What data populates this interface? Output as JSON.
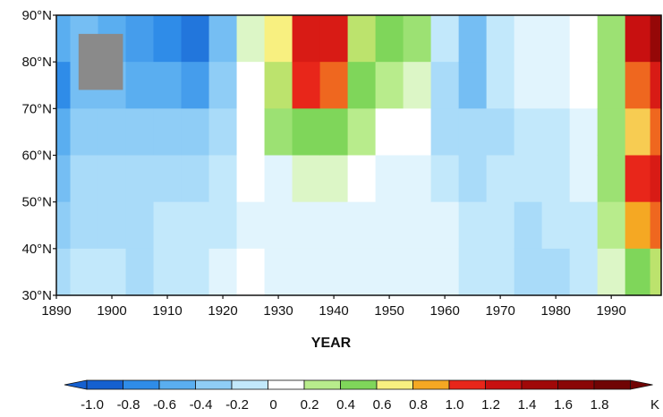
{
  "chart_data": {
    "type": "heatmap",
    "title": "",
    "xlabel": "YEAR",
    "ylabel": "",
    "xlim": [
      1890,
      1999
    ],
    "ylim": [
      30,
      90
    ],
    "x_ticks": [
      "1890",
      "1900",
      "1910",
      "1920",
      "1930",
      "1940",
      "1950",
      "1960",
      "1970",
      "1980",
      "1990"
    ],
    "y_ticks": [
      "30°N",
      "40°N",
      "50°N",
      "60°N",
      "70°N",
      "80°N",
      "90°N"
    ],
    "colorbar": {
      "unit": "K",
      "labels": [
        "-1.0",
        "-0.8",
        "-0.6",
        "-0.4",
        "-0.2",
        "0",
        "0.2",
        "0.4",
        "0.6",
        "0.8",
        "1.0",
        "1.2",
        "1.4",
        "1.6",
        "1.8"
      ],
      "colors": [
        "#1560d0",
        "#2f8ce8",
        "#5aaef0",
        "#8fcdf6",
        "#c2e8fb",
        "#ffffff",
        "#b8ec8c",
        "#7fd65a",
        "#f8f080",
        "#f5a823",
        "#e8261a",
        "#c81010",
        "#a00808",
        "#8a0606",
        "#700404"
      ]
    },
    "years": [
      1890,
      1895,
      1900,
      1905,
      1910,
      1915,
      1920,
      1925,
      1930,
      1935,
      1940,
      1945,
      1950,
      1955,
      1960,
      1965,
      1970,
      1975,
      1980,
      1985,
      1990,
      1995,
      1999
    ],
    "latitudes": [
      85,
      75,
      65,
      55,
      45,
      35
    ],
    "values": [
      [
        -0.6,
        -0.5,
        -0.6,
        -0.7,
        -0.8,
        -0.9,
        -0.5,
        0.1,
        0.6,
        1.1,
        1.1,
        0.5,
        0.4,
        0.3,
        -0.2,
        -0.5,
        -0.2,
        -0.1,
        -0.1,
        0.0,
        0.3,
        1.2,
        1.5
      ],
      [
        -0.8,
        -0.5,
        -0.5,
        -0.6,
        -0.6,
        -0.7,
        -0.4,
        0.0,
        0.5,
        1.0,
        0.9,
        0.4,
        0.2,
        0.1,
        -0.3,
        -0.5,
        -0.2,
        -0.1,
        -0.1,
        0.0,
        0.3,
        0.9,
        1.1
      ],
      [
        -0.6,
        -0.4,
        -0.4,
        -0.4,
        -0.4,
        -0.4,
        -0.3,
        0.0,
        0.3,
        0.4,
        0.4,
        0.2,
        0.0,
        0.0,
        -0.3,
        -0.3,
        -0.3,
        -0.2,
        -0.2,
        -0.1,
        0.3,
        0.7,
        0.9
      ],
      [
        -0.5,
        -0.3,
        -0.3,
        -0.3,
        -0.3,
        -0.3,
        -0.2,
        0.0,
        -0.1,
        0.1,
        0.1,
        0.0,
        -0.1,
        -0.1,
        -0.2,
        -0.3,
        -0.2,
        -0.2,
        -0.2,
        -0.1,
        0.3,
        1.0,
        1.1
      ],
      [
        -0.4,
        -0.3,
        -0.3,
        -0.3,
        -0.2,
        -0.2,
        -0.2,
        -0.1,
        -0.1,
        -0.1,
        -0.1,
        -0.1,
        -0.1,
        -0.1,
        -0.1,
        -0.2,
        -0.2,
        -0.3,
        -0.2,
        -0.2,
        0.2,
        0.8,
        0.9
      ],
      [
        -0.3,
        -0.2,
        -0.2,
        -0.3,
        -0.2,
        -0.2,
        -0.1,
        0.0,
        -0.1,
        -0.1,
        -0.1,
        -0.1,
        -0.1,
        -0.1,
        -0.1,
        -0.2,
        -0.2,
        -0.3,
        -0.3,
        -0.2,
        0.1,
        0.4,
        0.5
      ]
    ],
    "missing_region": {
      "x": [
        1894,
        1902
      ],
      "y": [
        74,
        86
      ]
    }
  }
}
